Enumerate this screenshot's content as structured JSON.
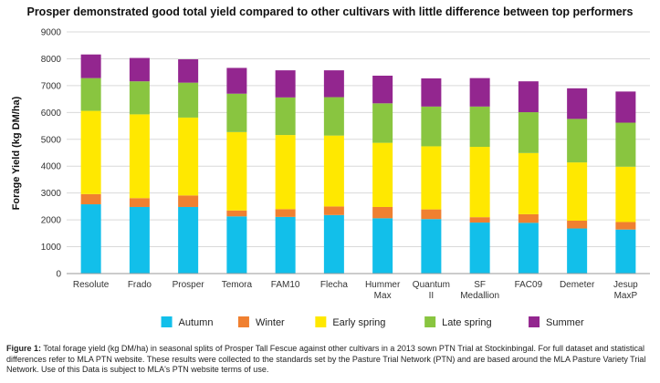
{
  "chart_data": {
    "type": "bar",
    "stacked": true,
    "title": "Prosper demonstrated good total yield compared to other cultivars with little difference between top performers",
    "ylabel": "Forage Yield (kg DM/ha)",
    "xlabel": "",
    "ylim": [
      0,
      9000
    ],
    "yticks": [
      0,
      1000,
      2000,
      3000,
      4000,
      5000,
      6000,
      7000,
      8000,
      9000
    ],
    "grid": true,
    "legend_position": "bottom",
    "categories": [
      "Resolute",
      "Frado",
      "Prosper",
      "Temora",
      "FAM10",
      "Flecha",
      "Hummer Max",
      "Quantum II",
      "SF Medallion",
      "FAC09",
      "Demeter",
      "Jesup MaxP"
    ],
    "category_lines": [
      [
        "Resolute"
      ],
      [
        "Frado"
      ],
      [
        "Prosper"
      ],
      [
        "Temora"
      ],
      [
        "FAM10"
      ],
      [
        "Flecha"
      ],
      [
        "Hummer",
        "Max"
      ],
      [
        "Quantum",
        "II"
      ],
      [
        "SF",
        "Medallion"
      ],
      [
        "FAC09"
      ],
      [
        "Demeter"
      ],
      [
        "Jesup",
        "MaxP"
      ]
    ],
    "series": [
      {
        "name": "Autumn",
        "color": "#12bfea",
        "values": [
          2580,
          2480,
          2480,
          2130,
          2110,
          2180,
          2060,
          2030,
          1900,
          1890,
          1680,
          1640
        ]
      },
      {
        "name": "Winter",
        "color": "#f08030",
        "values": [
          380,
          330,
          430,
          220,
          290,
          320,
          420,
          360,
          200,
          320,
          290,
          280
        ]
      },
      {
        "name": "Early spring",
        "color": "#ffe800",
        "values": [
          3100,
          3120,
          2900,
          2920,
          2760,
          2640,
          2390,
          2350,
          2620,
          2280,
          2170,
          2060
        ]
      },
      {
        "name": "Late spring",
        "color": "#89c540",
        "values": [
          1220,
          1230,
          1300,
          1430,
          1400,
          1430,
          1470,
          1480,
          1500,
          1520,
          1620,
          1640
        ]
      },
      {
        "name": "Summer",
        "color": "#93268f",
        "values": [
          880,
          870,
          870,
          960,
          1010,
          1000,
          1030,
          1050,
          1060,
          1150,
          1140,
          1160
        ]
      }
    ]
  },
  "caption": {
    "lead": "Figure 1:",
    "text": " Total forage yield (kg DM/ha) in seasonal splits of Prosper Tall Fescue against other cultivars in a 2013 sown PTN Trial at Stockinbingal. For full dataset and statistical differences refer to MLA PTN website. These results were collected to the standards set by the Pasture Trial Network (PTN) and are based around the MLA Pasture Variety Trial Network. Use of this Data is subject to MLA's PTN website terms of use."
  }
}
